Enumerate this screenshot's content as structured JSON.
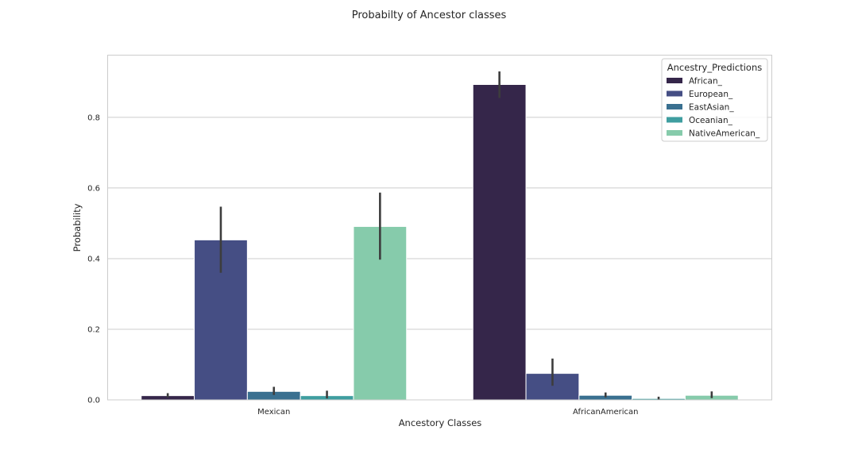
{
  "chart_data": {
    "type": "bar",
    "title": "Probabilty of Ancestor classes",
    "xlabel": "Ancestory Classes",
    "ylabel": "Probability",
    "ylim": [
      0,
      0.975
    ],
    "yticks": [
      "0.0",
      "0.2",
      "0.4",
      "0.6",
      "0.8"
    ],
    "grid": "horizontal",
    "legend": {
      "title": "Ancestry_Predictions",
      "placement": "top-right"
    },
    "categories": [
      "Mexican",
      "AfricanAmerican"
    ],
    "series": [
      {
        "name": "African_",
        "color": "#35264a",
        "values": [
          0.012,
          0.893
        ],
        "err_low": [
          0.007,
          0.855
        ],
        "err_high": [
          0.019,
          0.93
        ]
      },
      {
        "name": "European_",
        "color": "#454e84",
        "values": [
          0.453,
          0.075
        ],
        "err_low": [
          0.36,
          0.04
        ],
        "err_high": [
          0.547,
          0.117
        ]
      },
      {
        "name": "EastAsian_",
        "color": "#3a7090",
        "values": [
          0.024,
          0.013
        ],
        "err_low": [
          0.014,
          0.007
        ],
        "err_high": [
          0.037,
          0.021
        ]
      },
      {
        "name": "Oceanian_",
        "color": "#3f9ea0",
        "values": [
          0.012,
          0.004
        ],
        "err_low": [
          0.004,
          0.001
        ],
        "err_high": [
          0.026,
          0.009
        ]
      },
      {
        "name": "NativeAmerican_",
        "color": "#86cbab",
        "values": [
          0.491,
          0.013
        ],
        "err_low": [
          0.397,
          0.005
        ],
        "err_high": [
          0.587,
          0.024
        ]
      }
    ]
  }
}
